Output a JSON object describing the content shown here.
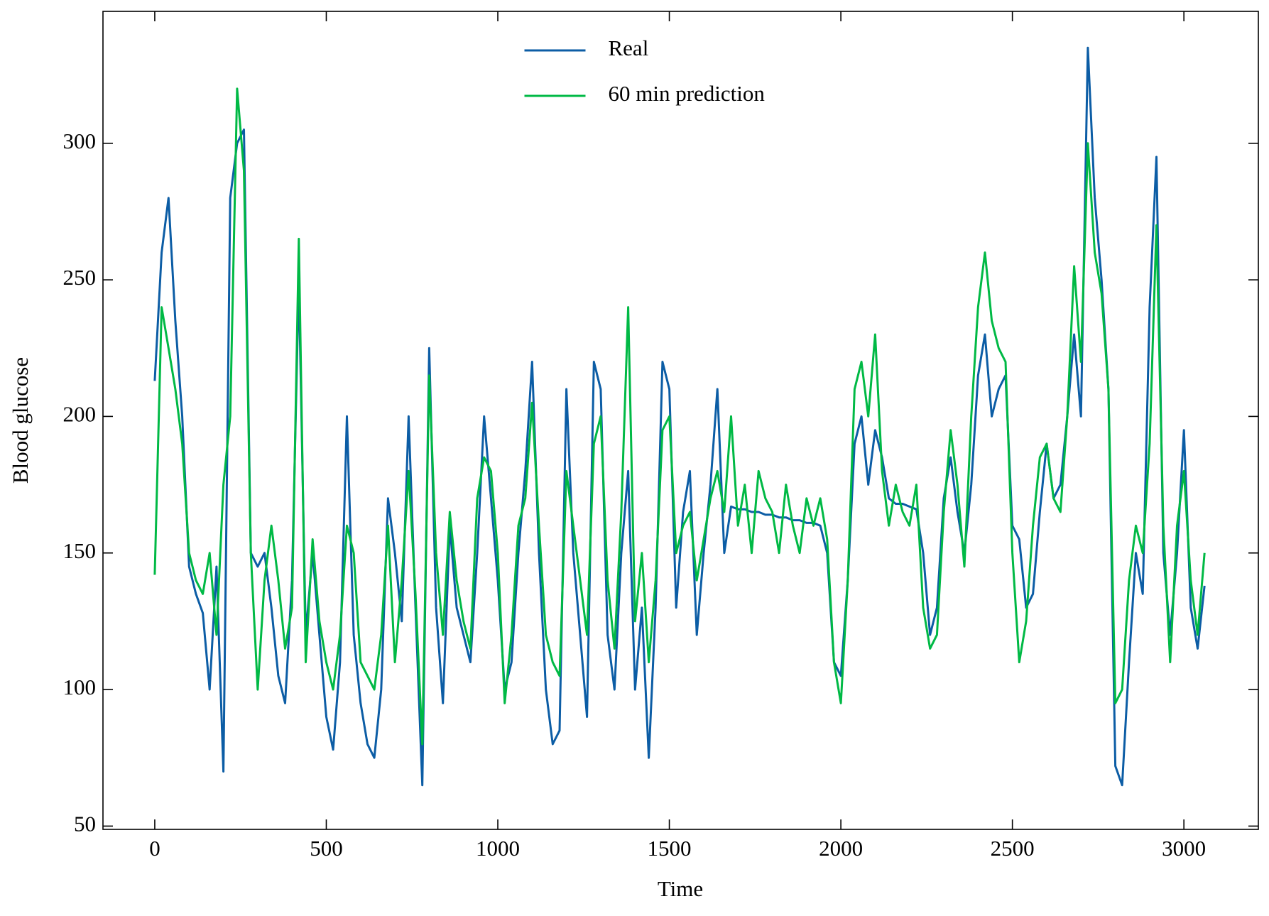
{
  "chart_data": {
    "type": "line",
    "xlabel": "Time",
    "ylabel": "Blood glucose",
    "x": [
      0,
      20,
      40,
      60,
      80,
      100,
      120,
      140,
      160,
      180,
      200,
      220,
      240,
      260,
      280,
      300,
      320,
      340,
      360,
      380,
      400,
      420,
      440,
      460,
      480,
      500,
      520,
      540,
      560,
      580,
      600,
      620,
      640,
      660,
      680,
      700,
      720,
      740,
      760,
      780,
      800,
      820,
      840,
      860,
      880,
      900,
      920,
      940,
      960,
      980,
      1000,
      1020,
      1040,
      1060,
      1080,
      1100,
      1120,
      1140,
      1160,
      1180,
      1200,
      1220,
      1240,
      1260,
      1280,
      1300,
      1320,
      1340,
      1360,
      1380,
      1400,
      1420,
      1440,
      1460,
      1480,
      1500,
      1520,
      1540,
      1560,
      1580,
      1600,
      1620,
      1640,
      1660,
      1680,
      1700,
      1720,
      1740,
      1760,
      1780,
      1800,
      1820,
      1840,
      1860,
      1880,
      1900,
      1920,
      1940,
      1960,
      1980,
      2000,
      2020,
      2040,
      2060,
      2080,
      2100,
      2120,
      2140,
      2160,
      2180,
      2200,
      2220,
      2240,
      2260,
      2280,
      2300,
      2320,
      2340,
      2360,
      2380,
      2400,
      2420,
      2440,
      2460,
      2480,
      2500,
      2520,
      2540,
      2560,
      2580,
      2600,
      2620,
      2640,
      2660,
      2680,
      2700,
      2720,
      2740,
      2760,
      2780,
      2800,
      2820,
      2840,
      2860,
      2880,
      2900,
      2920,
      2940,
      2960,
      2980,
      3000,
      3020,
      3040,
      3060
    ],
    "series": [
      {
        "name": "Real",
        "color": "#0C5DA5",
        "values": [
          213,
          260,
          280,
          235,
          200,
          145,
          135,
          128,
          100,
          145,
          70,
          280,
          300,
          305,
          150,
          145,
          150,
          130,
          105,
          95,
          140,
          250,
          120,
          150,
          120,
          90,
          78,
          110,
          200,
          120,
          95,
          80,
          75,
          100,
          170,
          150,
          125,
          200,
          130,
          65,
          225,
          130,
          95,
          160,
          130,
          120,
          110,
          150,
          200,
          170,
          140,
          100,
          110,
          150,
          180,
          220,
          150,
          100,
          80,
          85,
          210,
          150,
          120,
          90,
          220,
          210,
          120,
          100,
          150,
          180,
          100,
          130,
          75,
          130,
          220,
          210,
          130,
          165,
          180,
          120,
          150,
          175,
          210,
          150,
          167,
          166,
          166,
          165,
          165,
          164,
          164,
          163,
          163,
          162,
          162,
          161,
          161,
          160,
          150,
          110,
          105,
          140,
          190,
          200,
          175,
          195,
          185,
          170,
          168,
          168,
          167,
          166,
          150,
          120,
          130,
          170,
          185,
          165,
          150,
          175,
          215,
          230,
          200,
          210,
          215,
          160,
          155,
          130,
          135,
          165,
          190,
          170,
          175,
          200,
          230,
          200,
          335,
          280,
          250,
          210,
          72,
          65,
          110,
          150,
          135,
          240,
          295,
          150,
          120,
          150,
          195,
          130,
          115,
          138
        ]
      },
      {
        "name": "60 min prediction",
        "color": "#00B945",
        "values": [
          142,
          240,
          225,
          210,
          190,
          150,
          140,
          135,
          150,
          120,
          175,
          200,
          320,
          290,
          150,
          100,
          140,
          160,
          140,
          115,
          130,
          265,
          110,
          155,
          125,
          110,
          100,
          120,
          160,
          150,
          110,
          105,
          100,
          120,
          160,
          110,
          140,
          180,
          135,
          80,
          215,
          150,
          120,
          165,
          140,
          125,
          115,
          170,
          185,
          180,
          150,
          95,
          120,
          160,
          170,
          205,
          160,
          120,
          110,
          105,
          180,
          160,
          140,
          120,
          190,
          200,
          140,
          115,
          165,
          240,
          125,
          150,
          110,
          140,
          195,
          200,
          150,
          160,
          165,
          140,
          155,
          170,
          180,
          165,
          200,
          160,
          175,
          150,
          180,
          170,
          165,
          150,
          175,
          160,
          150,
          170,
          160,
          170,
          155,
          110,
          95,
          140,
          210,
          220,
          200,
          230,
          180,
          160,
          175,
          165,
          160,
          175,
          130,
          115,
          120,
          165,
          195,
          175,
          145,
          200,
          240,
          260,
          235,
          225,
          220,
          150,
          110,
          125,
          160,
          185,
          190,
          170,
          165,
          200,
          255,
          220,
          300,
          260,
          245,
          210,
          95,
          100,
          140,
          160,
          150,
          190,
          270,
          160,
          110,
          160,
          180,
          140,
          120,
          150
        ]
      }
    ],
    "xlim": [
      -151,
      3217
    ],
    "ylim": [
      48.8,
      348.3
    ],
    "xticks": [
      0,
      500,
      1000,
      1500,
      2000,
      2500,
      3000
    ],
    "yticks": [
      50,
      100,
      150,
      200,
      250,
      300
    ],
    "legend": "upper center"
  }
}
